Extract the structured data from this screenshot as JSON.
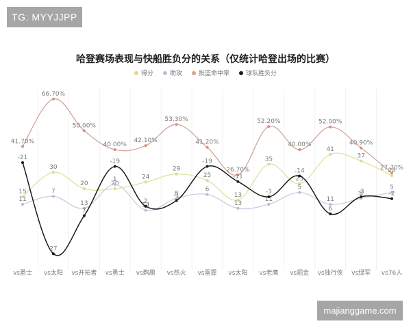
{
  "watermarks": {
    "top": "TG: MYYJJPP",
    "bottom": "majianggame.com"
  },
  "chart_data": {
    "type": "line",
    "title": "哈登赛场表现与快船胜负分的关系（仅统计哈登出场的比赛）",
    "xlabel": "",
    "ylabel": "",
    "grid": "vertical",
    "legend_position": "top",
    "categories": [
      "vs爵士",
      "vs太阳",
      "vs开拓者",
      "vs勇士",
      "vs鹈鹕",
      "vs热火",
      "vs雷霆",
      "vs太阳",
      "vs老鹰",
      "vs掘金",
      "vs独行侠",
      "vs绿军",
      "vs76人"
    ],
    "series": [
      {
        "name": "得分",
        "color": "#dfe3a0",
        "values": [
          15,
          30,
          20,
          20,
          24,
          29,
          25,
          13,
          35,
          23,
          41,
          37,
          28
        ]
      },
      {
        "name": "助攻",
        "color": "#cdbfd9",
        "values": [
          11,
          7,
          13,
          1,
          14,
          8,
          6,
          13,
          11,
          5,
          11,
          8,
          5
        ]
      },
      {
        "name": "投篮命中率",
        "color": "#d8a898",
        "values": [
          41.7,
          66.7,
          50.0,
          40.0,
          42.1,
          53.3,
          41.2,
          26.7,
          52.2,
          40.0,
          52.0,
          40.9,
          27.7
        ],
        "labels": [
          "41.70%",
          "66.70%",
          "50.00%",
          "40.00%",
          "42.10%",
          "53.30%",
          "41.20%",
          "26.70%",
          "52.20%",
          "40.00%",
          "52.00%",
          "40.90%",
          "27.70%"
        ]
      },
      {
        "name": "球队胜负分",
        "color": "#1a1a1a",
        "values": [
          -21,
          27,
          7,
          -19,
          2,
          -1,
          -19,
          -11,
          -3,
          -14,
          6,
          -3,
          -2
        ]
      }
    ]
  }
}
